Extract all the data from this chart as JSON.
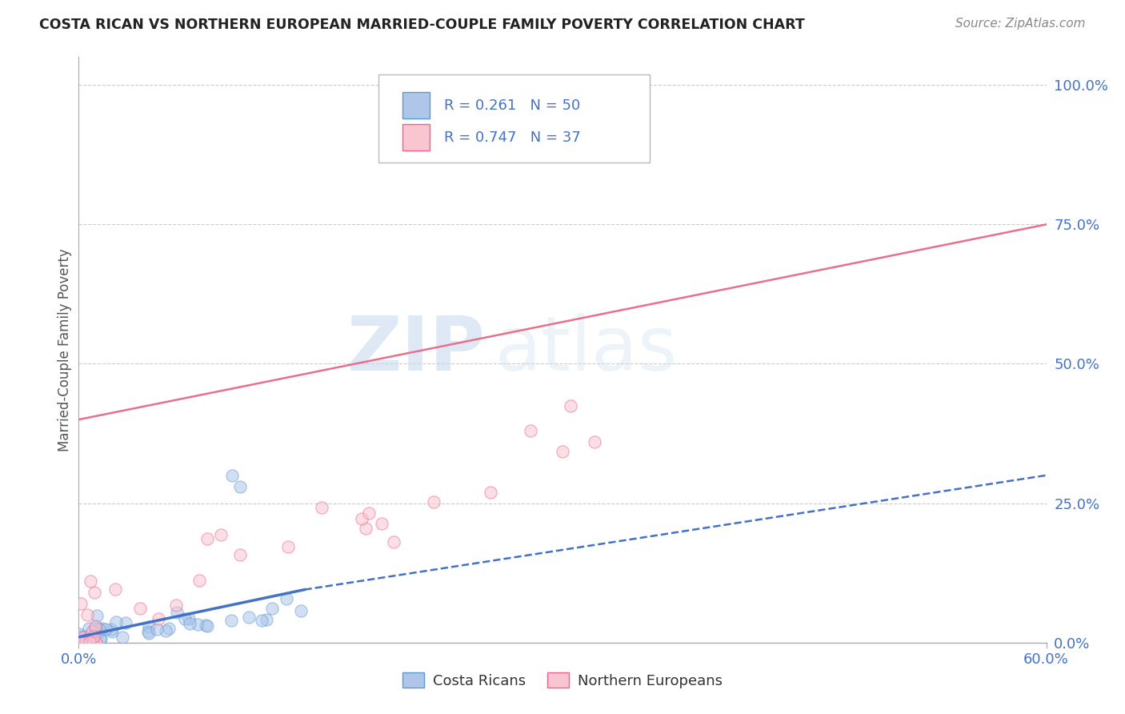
{
  "title": "COSTA RICAN VS NORTHERN EUROPEAN MARRIED-COUPLE FAMILY POVERTY CORRELATION CHART",
  "source": "Source: ZipAtlas.com",
  "ylabel": "Married-Couple Family Poverty",
  "right_yticklabels": [
    "0.0%",
    "25.0%",
    "50.0%",
    "75.0%",
    "100.0%"
  ],
  "right_ytick_vals": [
    0.0,
    0.25,
    0.5,
    0.75,
    1.0
  ],
  "legend_entries": [
    {
      "label": "Costa Ricans",
      "face_color": "#aec6e8",
      "edge_color": "#5b9bd5",
      "R": "0.261",
      "N": "50"
    },
    {
      "label": "Northern Europeans",
      "face_color": "#f9c5d0",
      "edge_color": "#f06090",
      "R": "0.747",
      "N": "37"
    }
  ],
  "blue_line_solid": {
    "x": [
      0.0,
      0.14
    ],
    "y": [
      0.01,
      0.095
    ],
    "color": "#4472c4",
    "lw": 2.5
  },
  "blue_line_dashed": {
    "x": [
      0.14,
      0.6
    ],
    "y": [
      0.095,
      0.3
    ],
    "color": "#4472c4",
    "lw": 1.8
  },
  "pink_line": {
    "x": [
      0.0,
      0.6
    ],
    "y": [
      0.4,
      0.75
    ],
    "color": "#e8708a",
    "lw": 1.8
  },
  "watermark_zip": "ZIP",
  "watermark_atlas": "atlas",
  "background_color": "#ffffff",
  "grid_color": "#cccccc",
  "scatter_alpha": 0.55,
  "scatter_size": 120,
  "xlim": [
    0.0,
    0.6
  ],
  "ylim": [
    0.0,
    1.05
  ],
  "blue_N": 50,
  "pink_N": 37
}
